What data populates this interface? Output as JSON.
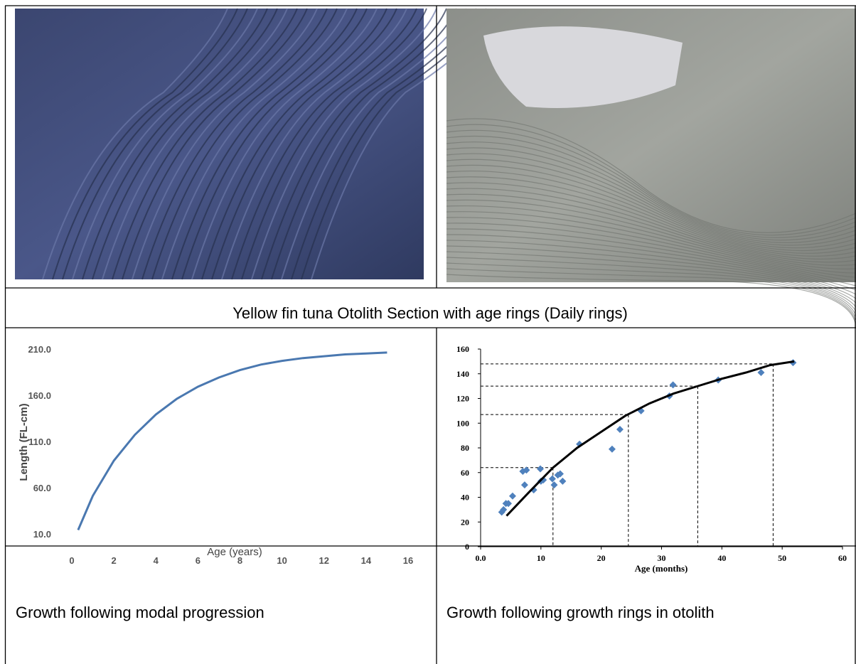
{
  "table": {
    "caption": "Yellow fin tuna Otolith Section with age rings (Daily rings)",
    "left_caption": "Growth following modal progression",
    "right_caption": "Growth following growth rings in otolith"
  },
  "charts": [
    {
      "type": "line",
      "xlabel": "Age (years)",
      "ylabel": "Length (FL-cm)",
      "color": "#4a78b0",
      "x": [
        0.3,
        1,
        2,
        3,
        4,
        5,
        6,
        7,
        8,
        9,
        10,
        11,
        12,
        13,
        14,
        15
      ],
      "values": [
        15,
        52,
        90,
        118,
        140,
        157,
        170,
        180,
        188,
        194,
        198,
        201,
        203,
        205,
        206,
        207
      ],
      "xlim": [
        0,
        16
      ],
      "xticks": [
        0,
        2,
        4,
        6,
        8,
        10,
        12,
        14,
        16
      ],
      "ylim": [
        10,
        210
      ],
      "yticks": [
        {
          "value": 10,
          "label": "10.0"
        },
        {
          "value": 60,
          "label": "60.0"
        },
        {
          "value": 110,
          "label": "110.0"
        },
        {
          "value": 160,
          "label": "160.0"
        },
        {
          "value": 210,
          "label": "210.0"
        }
      ]
    },
    {
      "type": "scatter",
      "xlabel": "Age  (months)",
      "color": "#4f81bd",
      "x": [
        3.5,
        3.8,
        4.2,
        4.6,
        5.3,
        7,
        7.3,
        7.6,
        8.8,
        9.9,
        10,
        10.4,
        11.9,
        12.2,
        12.8,
        13.2,
        13.6,
        16.4,
        21.8,
        23.1,
        26.6,
        31.3,
        31.9,
        39.4,
        46.5,
        51.8
      ],
      "values": [
        28,
        30,
        35,
        35,
        41,
        61,
        50,
        62,
        46,
        63,
        53,
        54,
        55,
        50,
        58,
        59,
        53,
        83,
        79,
        95,
        110,
        122,
        131,
        135,
        141,
        149
      ],
      "fit": {
        "color": "#000000",
        "x": [
          4.3,
          8,
          12,
          16,
          20,
          24,
          28,
          32,
          36,
          40,
          44,
          48,
          52
        ],
        "values": [
          25,
          44,
          64,
          80,
          93,
          106,
          116,
          124,
          130,
          136,
          141,
          147,
          150
        ]
      },
      "reference_lines": [
        {
          "x": 12,
          "y": 64
        },
        {
          "x": 24.5,
          "y": 107
        },
        {
          "x": 36,
          "y": 130
        },
        {
          "x": 48.5,
          "y": 148
        }
      ],
      "xlim": [
        0,
        60
      ],
      "xticks": [
        {
          "value": 0,
          "label": "0.0"
        },
        10,
        20,
        30,
        40,
        50,
        60
      ],
      "ylim": [
        0,
        160
      ],
      "yticks": [
        0,
        20,
        40,
        60,
        80,
        100,
        120,
        140,
        160
      ]
    }
  ]
}
